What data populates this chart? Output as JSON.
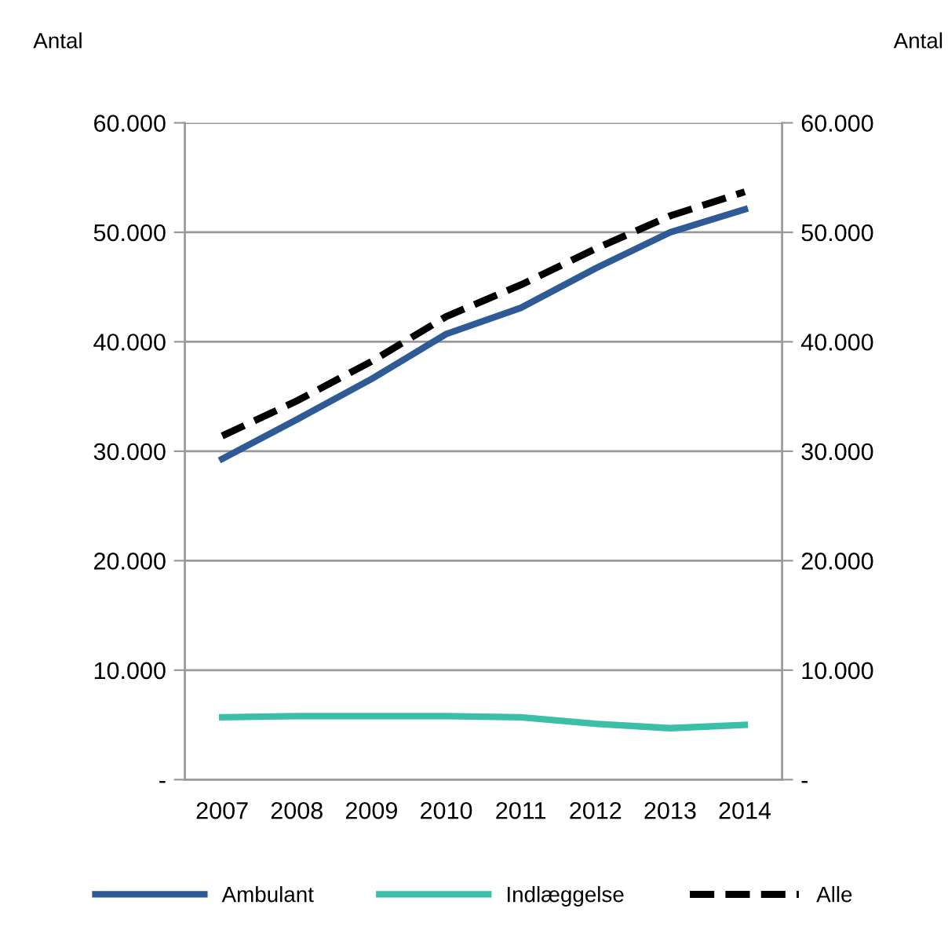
{
  "chart_data": {
    "type": "line",
    "ylabel": "Antal",
    "y2label": "Antal",
    "categories": [
      "2007",
      "2008",
      "2009",
      "2010",
      "2011",
      "2012",
      "2013",
      "2014"
    ],
    "series": [
      {
        "name": "Ambulant",
        "color": "#2e5a95",
        "values": [
          29300,
          32900,
          36600,
          40700,
          43100,
          46700,
          50000,
          52100
        ]
      },
      {
        "name": "Indlæggelse",
        "color": "#3bbfa8",
        "values": [
          5700,
          5800,
          5800,
          5800,
          5700,
          5100,
          4700,
          5000
        ]
      },
      {
        "name": "Alle",
        "color": "#000000",
        "line_style": "dashed",
        "values": [
          31400,
          34600,
          38200,
          42300,
          45200,
          48500,
          51500,
          53700
        ]
      }
    ],
    "ylim": [
      0,
      60000
    ],
    "yticks": [
      {
        "value": 0,
        "label": "-"
      },
      {
        "value": 10000,
        "label": "10.000"
      },
      {
        "value": 20000,
        "label": "20.000"
      },
      {
        "value": 30000,
        "label": "30.000"
      },
      {
        "value": 40000,
        "label": "40.000"
      },
      {
        "value": 50000,
        "label": "50.000"
      },
      {
        "value": 60000,
        "label": "60.000"
      }
    ],
    "y2lim": [
      0,
      60000
    ],
    "y2ticks": [
      {
        "value": 0,
        "label": "-"
      },
      {
        "value": 10000,
        "label": "10.000"
      },
      {
        "value": 20000,
        "label": "20.000"
      },
      {
        "value": 30000,
        "label": "30.000"
      },
      {
        "value": 40000,
        "label": "40.000"
      },
      {
        "value": 50000,
        "label": "50.000"
      },
      {
        "value": 60000,
        "label": "60.000"
      }
    ],
    "grid": "y",
    "legend": "bottom",
    "marker": "none"
  }
}
